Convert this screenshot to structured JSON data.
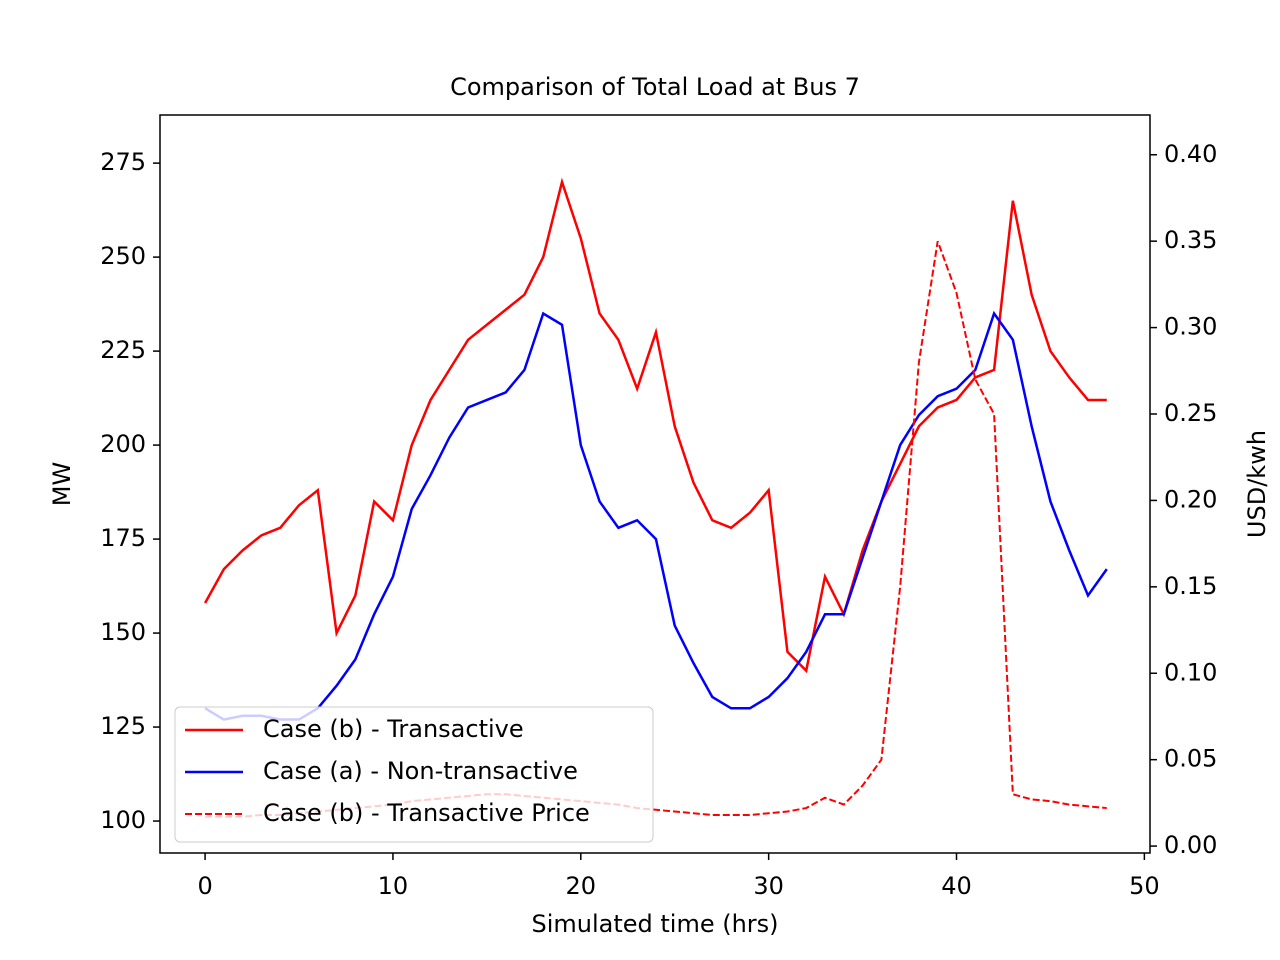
{
  "chart_data": {
    "type": "line",
    "title": "Comparison of Total Load at Bus 7",
    "x_label": "Simulated time (hrs)",
    "y_label": "MW",
    "y2_label": "USD/kwh",
    "x": [
      0,
      1,
      2,
      3,
      4,
      5,
      6,
      7,
      8,
      9,
      10,
      11,
      12,
      13,
      14,
      15,
      16,
      17,
      18,
      19,
      20,
      21,
      22,
      23,
      24,
      25,
      26,
      27,
      28,
      29,
      30,
      31,
      32,
      33,
      34,
      35,
      36,
      37,
      38,
      39,
      40,
      41,
      42,
      43,
      44,
      45,
      46,
      47,
      48
    ],
    "series": [
      {
        "name": "Case (b) - Transactive",
        "color": "#ff0000",
        "dash": false,
        "axis": "y",
        "values": [
          158,
          167,
          172,
          176,
          178,
          184,
          188,
          150,
          160,
          185,
          180,
          200,
          212,
          220,
          228,
          232,
          236,
          240,
          250,
          270,
          255,
          235,
          228,
          215,
          230,
          205,
          190,
          180,
          178,
          182,
          188,
          145,
          140,
          165,
          155,
          172,
          185,
          195,
          205,
          210,
          212,
          218,
          220,
          265,
          240,
          225,
          218,
          212,
          212
        ]
      },
      {
        "name": "Case (a) - Non-transactive",
        "color": "#0000ff",
        "dash": false,
        "axis": "y",
        "values": [
          130,
          127,
          128,
          128,
          127,
          127,
          130,
          136,
          143,
          155,
          165,
          183,
          192,
          202,
          210,
          212,
          214,
          220,
          235,
          232,
          200,
          185,
          178,
          180,
          175,
          152,
          142,
          133,
          130,
          130,
          133,
          138,
          145,
          155,
          155,
          170,
          185,
          200,
          208,
          213,
          215,
          220,
          235,
          228,
          205,
          185,
          172,
          160,
          167
        ]
      },
      {
        "name": "Case (b) - Transactive Price",
        "color": "#ff0000",
        "dash": true,
        "axis": "y2",
        "values": [
          0.017,
          0.017,
          0.017,
          0.018,
          0.018,
          0.019,
          0.02,
          0.021,
          0.022,
          0.023,
          0.024,
          0.026,
          0.027,
          0.028,
          0.029,
          0.03,
          0.03,
          0.029,
          0.028,
          0.027,
          0.026,
          0.025,
          0.024,
          0.022,
          0.021,
          0.02,
          0.019,
          0.018,
          0.018,
          0.018,
          0.019,
          0.02,
          0.022,
          0.028,
          0.024,
          0.035,
          0.05,
          0.15,
          0.28,
          0.35,
          0.32,
          0.27,
          0.25,
          0.03,
          0.027,
          0.026,
          0.024,
          0.023,
          0.022
        ]
      }
    ],
    "xlim": [
      -2.4,
      50.3
    ],
    "xticks": [
      0,
      10,
      20,
      30,
      40,
      50
    ],
    "ylim": [
      91.5,
      287.8
    ],
    "yticks": [
      100,
      125,
      150,
      175,
      200,
      225,
      250,
      275
    ],
    "y2lim": [
      -0.004,
      0.423
    ],
    "y2ticks": [
      {
        "value": 0,
        "label": "0.00"
      },
      {
        "value": 0.05,
        "label": "0.05"
      },
      {
        "value": 0.1,
        "label": "0.10"
      },
      {
        "value": 0.15,
        "label": "0.15"
      },
      {
        "value": 0.2,
        "label": "0.20"
      },
      {
        "value": 0.25,
        "label": "0.25"
      },
      {
        "value": 0.3,
        "label": "0.30"
      },
      {
        "value": 0.35,
        "label": "0.35"
      },
      {
        "value": 0.4,
        "label": "0.40"
      }
    ],
    "grid": false,
    "legend": "lower left"
  }
}
